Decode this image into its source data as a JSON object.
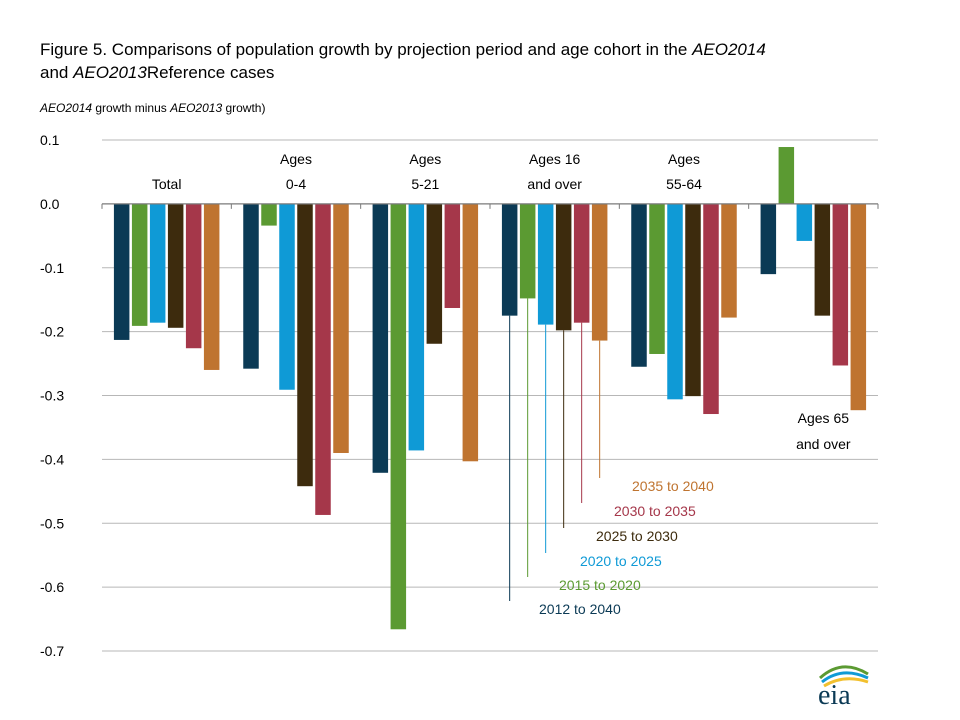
{
  "title": {
    "line1_pre": "Figure 5. Comparisons of population growth by projection period and age cohort in the ",
    "line1_italic": "AEO2014",
    "line2_italic": "AEO2013",
    "line2_post": "Reference cases",
    "line2_pre": "and "
  },
  "subtitle": {
    "italic1": "AEO2014",
    "mid": " growth minus ",
    "italic2": "AEO2013",
    "post": " growth)"
  },
  "logo": {
    "text": "eia"
  },
  "chart_data": {
    "type": "bar",
    "ylim": [
      -0.7,
      0.1
    ],
    "yticks": [
      0.1,
      0.0,
      -0.1,
      -0.2,
      -0.3,
      -0.4,
      -0.5,
      -0.6,
      -0.7
    ],
    "ytick_labels": [
      "0.1",
      "0.0",
      "-0.1",
      "-0.2",
      "-0.3",
      "-0.4",
      "-0.5",
      "-0.6",
      "-0.7"
    ],
    "grid": true,
    "categories": [
      {
        "id": "total",
        "lines": [
          "Total"
        ]
      },
      {
        "id": "ages0_4",
        "lines": [
          "Ages",
          "0-4"
        ]
      },
      {
        "id": "ages5_21",
        "lines": [
          "Ages",
          "5-21"
        ]
      },
      {
        "id": "ages16",
        "lines": [
          "Ages 16",
          "and over"
        ]
      },
      {
        "id": "ages55_64",
        "lines": [
          "Ages",
          "55-64"
        ]
      },
      {
        "id": "ages65",
        "lines": [
          "Ages 65",
          "and over"
        ]
      }
    ],
    "series": [
      {
        "name": "2012 to 2040",
        "color": "#0b3a55",
        "values": [
          -0.213,
          -0.258,
          -0.421,
          -0.175,
          -0.255,
          -0.11
        ]
      },
      {
        "name": "2015 to 2020",
        "color": "#5b9a32",
        "values": [
          -0.191,
          -0.034,
          -0.666,
          -0.148,
          -0.235,
          0.089
        ]
      },
      {
        "name": "2020 to 2025",
        "color": "#0f9ad6",
        "values": [
          -0.186,
          -0.291,
          -0.386,
          -0.189,
          -0.306,
          -0.058
        ]
      },
      {
        "name": "2025 to 2030",
        "color": "#3d2b0d",
        "values": [
          -0.194,
          -0.442,
          -0.219,
          -0.198,
          -0.301,
          -0.175
        ]
      },
      {
        "name": "2030 to 2035",
        "color": "#a5374a",
        "values": [
          -0.226,
          -0.487,
          -0.163,
          -0.186,
          -0.329,
          -0.253
        ]
      },
      {
        "name": "2035 to 2040",
        "color": "#bf7430",
        "values": [
          -0.26,
          -0.39,
          -0.403,
          -0.214,
          -0.178,
          -0.323
        ]
      }
    ]
  }
}
